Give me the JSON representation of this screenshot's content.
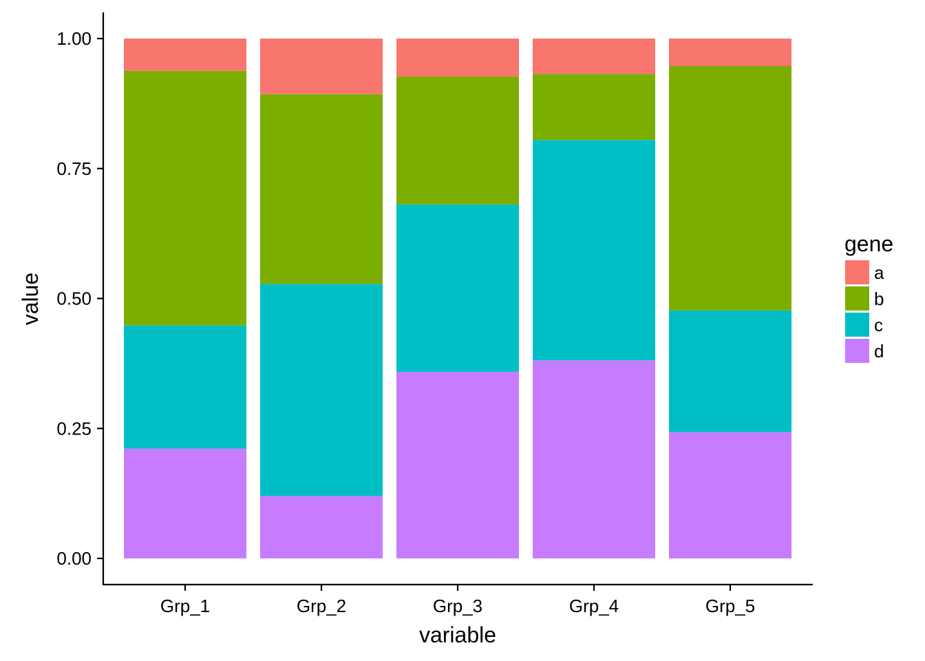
{
  "chart_data": {
    "type": "bar",
    "stacked": true,
    "categories": [
      "Grp_1",
      "Grp_2",
      "Grp_3",
      "Grp_4",
      "Grp_5"
    ],
    "series": [
      {
        "name": "a",
        "color": "#F8766D",
        "values": [
          0.062,
          0.107,
          0.073,
          0.068,
          0.053
        ]
      },
      {
        "name": "b",
        "color": "#7CAE00",
        "values": [
          0.49,
          0.365,
          0.246,
          0.127,
          0.47
        ]
      },
      {
        "name": "c",
        "color": "#00BFC4",
        "values": [
          0.237,
          0.408,
          0.322,
          0.424,
          0.234
        ]
      },
      {
        "name": "d",
        "color": "#C77CFF",
        "values": [
          0.211,
          0.12,
          0.359,
          0.381,
          0.243
        ]
      }
    ],
    "xlabel": "variable",
    "ylabel": "value",
    "ylim": [
      -0.05,
      1.05
    ],
    "yticks": [
      0.0,
      0.25,
      0.5,
      0.75,
      1.0
    ],
    "ytick_labels": [
      "0.00",
      "0.25",
      "0.50",
      "0.75",
      "1.00"
    ],
    "legend": {
      "title": "gene",
      "position": "right"
    },
    "grid": false
  }
}
